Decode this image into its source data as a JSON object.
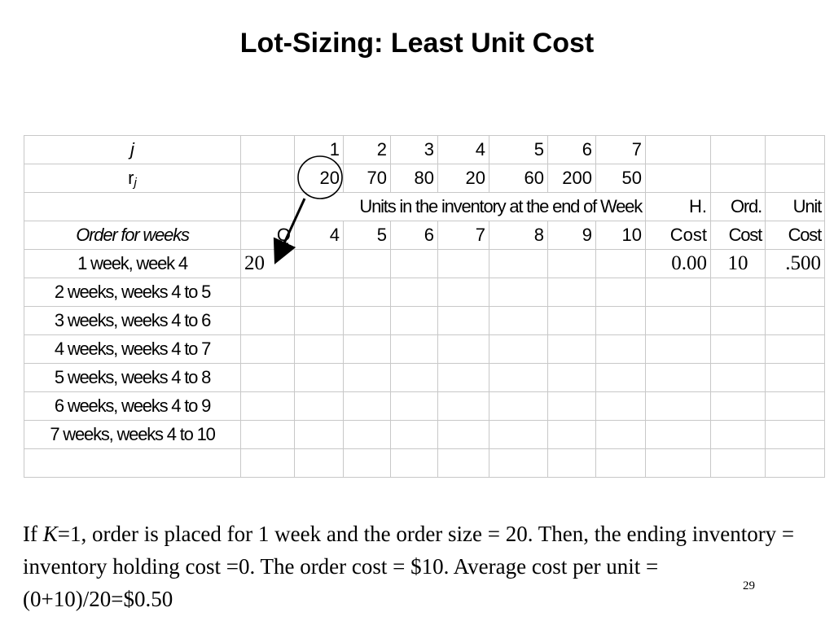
{
  "title": "Lot-Sizing: Least Unit Cost",
  "table": {
    "row_j": {
      "label": "j",
      "values": [
        "1",
        "2",
        "3",
        "4",
        "5",
        "6",
        "7"
      ]
    },
    "row_r": {
      "label_main": "r",
      "label_sub": "j",
      "values": [
        "20",
        "70",
        "80",
        "20",
        "60",
        "200",
        "50"
      ]
    },
    "header1": {
      "span_text": "Units in the inventory at the end of Week",
      "hcost": "H.",
      "ocost": "Ord.",
      "ucost": "Unit"
    },
    "header2": {
      "label": "Order for weeks",
      "q": "Q",
      "weeks": [
        "4",
        "5",
        "6",
        "7",
        "8",
        "9",
        "10"
      ],
      "hcost": "Cost",
      "ocost": "Cost",
      "ucost": "Cost"
    },
    "rows": [
      {
        "label": "1 week, week 4",
        "q": "20",
        "hcost": "0.00",
        "ocost": "10",
        "ucost": ".500"
      },
      {
        "label": "2 weeks, weeks 4 to 5"
      },
      {
        "label": "3 weeks, weeks 4 to 6"
      },
      {
        "label": "4 weeks, weeks 4 to 7"
      },
      {
        "label": "5 weeks, weeks 4 to 8"
      },
      {
        "label": "6 weeks, weeks 4 to 9"
      },
      {
        "label": "7 weeks, weeks 4 to 10"
      }
    ]
  },
  "paragraph": {
    "p1": "If ",
    "k": "K",
    "p2": "=1, order is placed for 1 week and the order size = 20. Then, the ending inventory = inventory holding cost =0. The order cost = $10. Average cost per unit = (0+10)/20=$0.50"
  },
  "page_number": "29"
}
